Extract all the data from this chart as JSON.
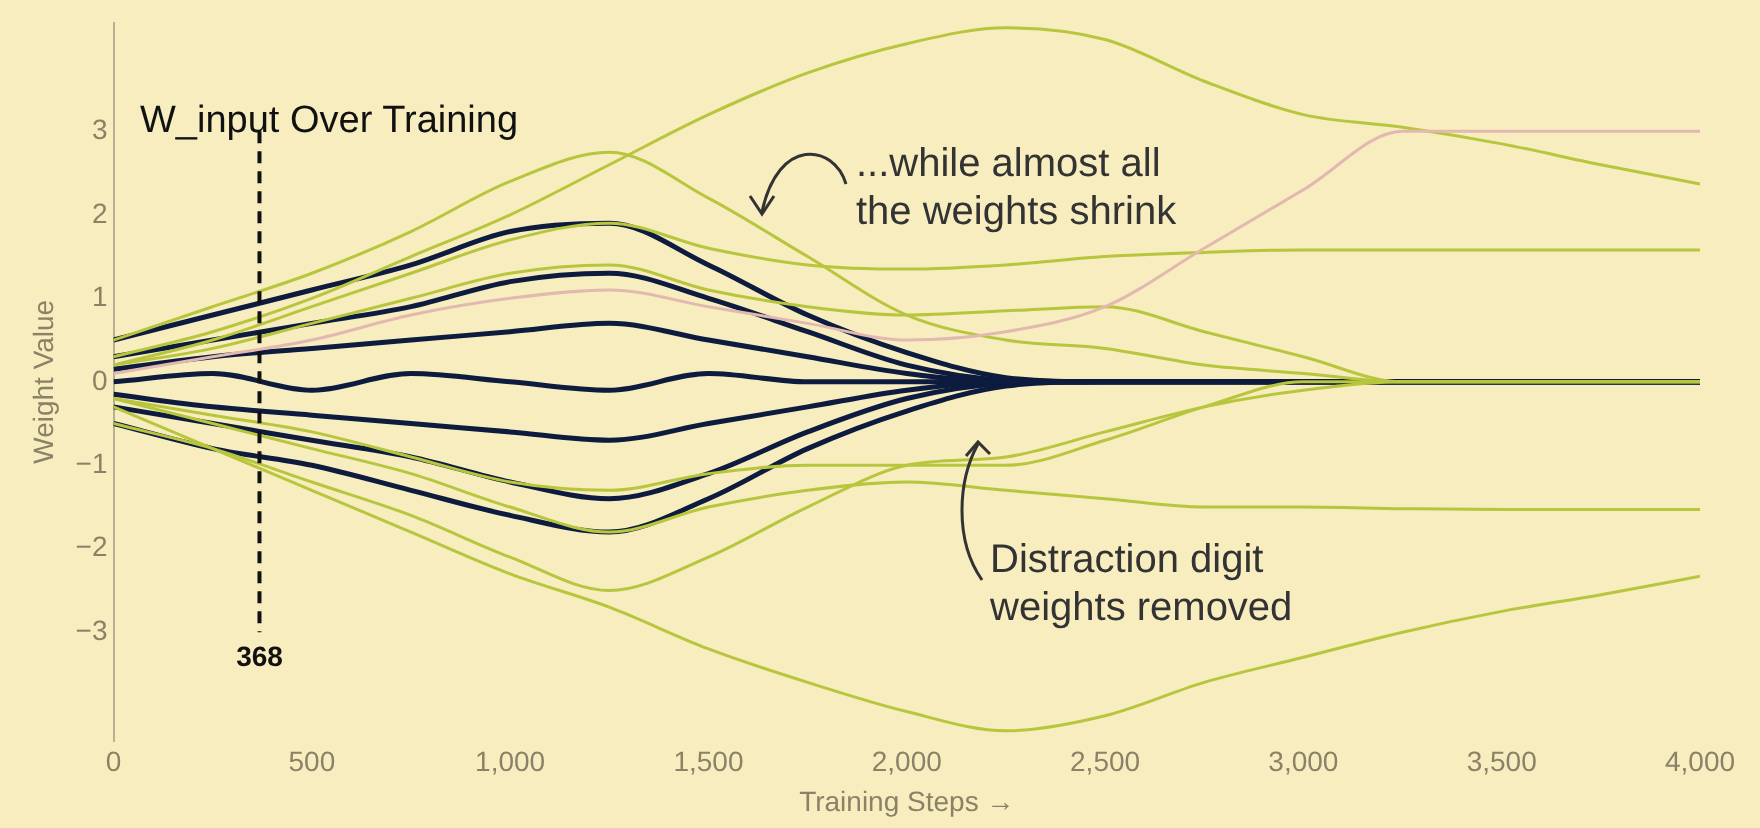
{
  "chart_data": {
    "type": "line",
    "title": "W_input Over Training",
    "xlabel": "Training Steps →",
    "ylabel": "Weight Value",
    "annotations": [
      "...while almost all\nthe weights shrink",
      "Distraction digit\nweights removed"
    ],
    "x": [
      0,
      250,
      500,
      750,
      1000,
      1250,
      1500,
      1750,
      2000,
      2250,
      2500,
      2750,
      3000,
      3250,
      3500,
      3750,
      4000
    ],
    "xlim": [
      0,
      4000
    ],
    "xticks": [
      0,
      500,
      {
        "value": 1000,
        "label": "1,000"
      },
      {
        "value": 1500,
        "label": "1,500"
      },
      {
        "value": 2000,
        "label": "2,000"
      },
      {
        "value": 2500,
        "label": "2,500"
      },
      {
        "value": 3000,
        "label": "3,000"
      },
      {
        "value": 3500,
        "label": "3,500"
      },
      {
        "value": 4000,
        "label": "4,000"
      }
    ],
    "ylim": [
      -4.3,
      4.3
    ],
    "yticks": [
      {
        "value": -3,
        "label": "−3"
      },
      {
        "value": -2,
        "label": "−2"
      },
      {
        "value": -1,
        "label": "−1"
      },
      0,
      1,
      2,
      3
    ],
    "grid": false,
    "legend": false,
    "marker": "none",
    "line_style": "solid",
    "ref_lines": [
      {
        "axis": "x",
        "value": 368,
        "label": "368",
        "color": "#111111",
        "line_style": "dashed"
      }
    ],
    "series": [
      {
        "color": "#0d1b3e",
        "values": [
          0.5,
          0.8,
          1.1,
          1.4,
          1.8,
          1.9,
          1.4,
          0.8,
          0.35,
          0.05,
          0,
          0,
          0,
          0,
          0,
          0,
          0
        ]
      },
      {
        "color": "#0d1b3e",
        "values": [
          -0.5,
          -0.8,
          -1.0,
          -1.3,
          -1.6,
          -1.8,
          -1.4,
          -0.8,
          -0.35,
          -0.05,
          0,
          0,
          0,
          0,
          0,
          0,
          0
        ]
      },
      {
        "color": "#0d1b3e",
        "values": [
          0.3,
          0.5,
          0.7,
          0.9,
          1.2,
          1.3,
          1.0,
          0.6,
          0.2,
          0.02,
          0,
          0,
          0,
          0,
          0,
          0,
          0
        ]
      },
      {
        "color": "#0d1b3e",
        "values": [
          -0.3,
          -0.5,
          -0.7,
          -0.9,
          -1.2,
          -1.4,
          -1.1,
          -0.6,
          -0.2,
          -0.02,
          0,
          0,
          0,
          0,
          0,
          0,
          0
        ]
      },
      {
        "color": "#0d1b3e",
        "values": [
          0.15,
          0.3,
          0.4,
          0.5,
          0.6,
          0.7,
          0.5,
          0.3,
          0.1,
          0,
          0,
          0,
          0,
          0,
          0,
          0,
          0
        ]
      },
      {
        "color": "#0d1b3e",
        "values": [
          -0.15,
          -0.3,
          -0.4,
          -0.5,
          -0.6,
          -0.7,
          -0.5,
          -0.3,
          -0.1,
          0,
          0,
          0,
          0,
          0,
          0,
          0,
          0
        ]
      },
      {
        "color": "#0d1b3e",
        "values": [
          0,
          0.1,
          -0.1,
          0.1,
          0,
          -0.1,
          0.1,
          0,
          0,
          0,
          0,
          0,
          0,
          0,
          0,
          0,
          0
        ]
      },
      {
        "color": "#b7c63c",
        "values": [
          0.5,
          0.9,
          1.3,
          1.8,
          2.4,
          2.75,
          2.2,
          1.5,
          0.8,
          0.5,
          0.4,
          0.2,
          0.1,
          0,
          0,
          0,
          0
        ]
      },
      {
        "color": "#b7c63c",
        "values": [
          -0.5,
          -0.8,
          -1.2,
          -1.6,
          -2.1,
          -2.5,
          -2.1,
          -1.5,
          -1.0,
          -0.9,
          -0.6,
          -0.3,
          -0.1,
          0,
          0,
          0,
          0
        ]
      },
      {
        "color": "#b7c63c",
        "values": [
          0.3,
          0.6,
          1.0,
          1.5,
          2.0,
          2.6,
          3.2,
          3.7,
          4.05,
          4.24,
          4.1,
          3.6,
          3.2,
          3.05,
          2.85,
          2.6,
          2.37
        ]
      },
      {
        "color": "#b7c63c",
        "values": [
          0.2,
          0.5,
          0.9,
          1.3,
          1.7,
          1.9,
          1.6,
          1.4,
          1.35,
          1.4,
          1.5,
          1.55,
          1.58,
          1.58,
          1.58,
          1.58,
          1.58
        ]
      },
      {
        "color": "#b7c63c",
        "values": [
          -0.2,
          -0.5,
          -0.8,
          -1.1,
          -1.5,
          -1.8,
          -1.5,
          -1.3,
          -1.2,
          -1.3,
          -1.4,
          -1.5,
          -1.5,
          -1.52,
          -1.53,
          -1.53,
          -1.53
        ]
      },
      {
        "color": "#b7c63c",
        "values": [
          -0.3,
          -0.8,
          -1.3,
          -1.8,
          -2.3,
          -2.7,
          -3.2,
          -3.6,
          -3.95,
          -4.18,
          -4.0,
          -3.6,
          -3.3,
          -3.0,
          -2.75,
          -2.55,
          -2.33
        ]
      },
      {
        "color": "#b7c63c",
        "values": [
          0.2,
          0.4,
          0.7,
          1.0,
          1.3,
          1.4,
          1.1,
          0.9,
          0.8,
          0.85,
          0.9,
          0.6,
          0.3,
          0,
          0,
          0,
          0
        ]
      },
      {
        "color": "#b7c63c",
        "values": [
          -0.2,
          -0.4,
          -0.6,
          -0.9,
          -1.2,
          -1.3,
          -1.1,
          -1.0,
          -1.0,
          -1.0,
          -0.7,
          -0.3,
          0,
          0,
          0,
          0,
          0
        ]
      },
      {
        "color": "#e3b8b0",
        "values": [
          0.1,
          0.3,
          0.5,
          0.8,
          1.0,
          1.1,
          0.9,
          0.7,
          0.5,
          0.6,
          0.9,
          1.6,
          2.3,
          3.0,
          3.0,
          3.0,
          3.0
        ]
      }
    ]
  }
}
